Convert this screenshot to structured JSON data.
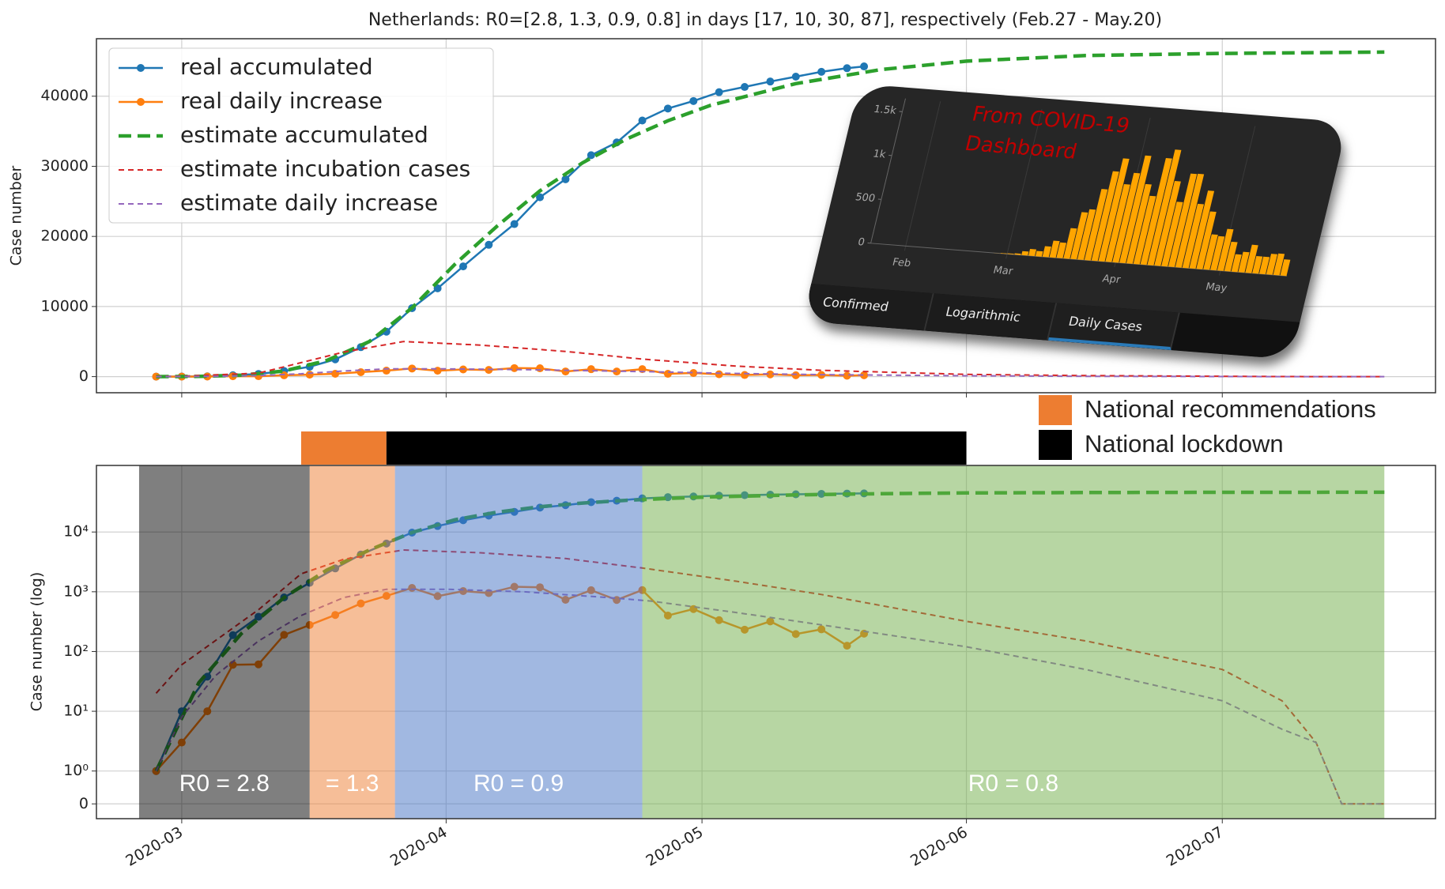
{
  "chart_data": [
    {
      "type": "line",
      "title": "Netherlands: R0=[2.8, 1.3, 0.9, 0.8] in days [17, 10, 30, 87], respectively (Feb.27 - May.20)",
      "ylabel": "Case number",
      "xlim": [
        "2020-02-20",
        "2020-07-26"
      ],
      "xticks": [
        "2020-03-01",
        "2020-04-01",
        "2020-05-01",
        "2020-06-01",
        "2020-07-01"
      ],
      "ylim": [
        -2300,
        48200
      ],
      "yticks": [
        0,
        10000,
        20000,
        30000,
        40000
      ],
      "grid": true,
      "legend": "upper left",
      "series": [
        {
          "name": "real accumulated",
          "color": "#1f77b4",
          "linestyle": "-",
          "marker": "o",
          "x": [
            "2020-02-27",
            "2020-03-01",
            "2020-03-04",
            "2020-03-07",
            "2020-03-10",
            "2020-03-13",
            "2020-03-16",
            "2020-03-19",
            "2020-03-22",
            "2020-03-25",
            "2020-03-28",
            "2020-03-31",
            "2020-04-03",
            "2020-04-06",
            "2020-04-09",
            "2020-04-12",
            "2020-04-15",
            "2020-04-18",
            "2020-04-21",
            "2020-04-24",
            "2020-04-27",
            "2020-04-30",
            "2020-05-03",
            "2020-05-06",
            "2020-05-09",
            "2020-05-12",
            "2020-05-15",
            "2020-05-18",
            "2020-05-20"
          ],
          "values": [
            1,
            10,
            38,
            188,
            382,
            804,
            1413,
            2460,
            4204,
            6412,
            9762,
            12595,
            15723,
            18803,
            21762,
            25587,
            28153,
            31589,
            33405,
            36535,
            38245,
            39316,
            40571,
            41319,
            42093,
            42788,
            43481,
            43995,
            44249
          ]
        },
        {
          "name": "real daily increase",
          "color": "#ff7f0e",
          "linestyle": "-",
          "marker": "o",
          "x": [
            "2020-02-27",
            "2020-03-01",
            "2020-03-04",
            "2020-03-07",
            "2020-03-10",
            "2020-03-13",
            "2020-03-16",
            "2020-03-19",
            "2020-03-22",
            "2020-03-25",
            "2020-03-28",
            "2020-03-31",
            "2020-04-03",
            "2020-04-06",
            "2020-04-09",
            "2020-04-12",
            "2020-04-15",
            "2020-04-18",
            "2020-04-21",
            "2020-04-24",
            "2020-04-27",
            "2020-04-30",
            "2020-05-03",
            "2020-05-06",
            "2020-05-09",
            "2020-05-12",
            "2020-05-15",
            "2020-05-18",
            "2020-05-20"
          ],
          "values": [
            1,
            3,
            10,
            60,
            61,
            190,
            278,
            409,
            637,
            852,
            1159,
            845,
            1026,
            952,
            1213,
            1188,
            734,
            1061,
            729,
            1066,
            400,
            514,
            335,
            232,
            319,
            196,
            235,
            125,
            199
          ]
        },
        {
          "name": "estimate accumulated",
          "color": "#2ca02c",
          "linestyle": "--",
          "x": [
            "2020-02-27",
            "2020-03-03",
            "2020-03-08",
            "2020-03-13",
            "2020-03-18",
            "2020-03-23",
            "2020-03-28",
            "2020-04-02",
            "2020-04-07",
            "2020-04-12",
            "2020-04-17",
            "2020-04-22",
            "2020-04-27",
            "2020-05-02",
            "2020-05-12",
            "2020-05-22",
            "2020-06-01",
            "2020-06-15",
            "2020-07-01",
            "2020-07-20"
          ],
          "values": [
            1,
            30,
            200,
            800,
            2300,
            5000,
            9800,
            16000,
            21500,
            26500,
            30500,
            33800,
            36500,
            38700,
            41800,
            43800,
            45000,
            45800,
            46100,
            46300
          ]
        },
        {
          "name": "estimate incubation cases",
          "color": "#d62728",
          "linestyle": "--",
          "x": [
            "2020-02-27",
            "2020-03-01",
            "2020-03-10",
            "2020-03-15",
            "2020-03-20",
            "2020-03-27",
            "2020-04-05",
            "2020-04-15",
            "2020-04-24",
            "2020-05-05",
            "2020-05-15",
            "2020-06-01",
            "2020-06-15",
            "2020-07-01",
            "2020-07-08",
            "2020-07-12",
            "2020-07-15",
            "2020-07-20"
          ],
          "values": [
            20,
            60,
            500,
            2000,
            3500,
            5000,
            4500,
            3600,
            2500,
            1500,
            900,
            320,
            150,
            50,
            15,
            3,
            0,
            0
          ]
        },
        {
          "name": "estimate daily increase",
          "color": "#9467bd",
          "linestyle": "--",
          "x": [
            "2020-02-27",
            "2020-03-01",
            "2020-03-05",
            "2020-03-10",
            "2020-03-15",
            "2020-03-20",
            "2020-03-25",
            "2020-04-01",
            "2020-04-10",
            "2020-04-20",
            "2020-04-25",
            "2020-05-05",
            "2020-05-15",
            "2020-06-01",
            "2020-06-15",
            "2020-07-01",
            "2020-07-08",
            "2020-07-12",
            "2020-07-15",
            "2020-07-20"
          ],
          "values": [
            1,
            8,
            40,
            150,
            400,
            800,
            1100,
            1100,
            1000,
            800,
            700,
            450,
            280,
            120,
            50,
            15,
            5,
            3,
            0,
            0
          ]
        }
      ]
    },
    {
      "type": "line",
      "ylabel": "Case number (log)",
      "xlim": [
        "2020-02-20",
        "2020-07-26"
      ],
      "xticks": [
        {
          "value": "2020-03-01",
          "label": "2020-03"
        },
        {
          "value": "2020-04-01",
          "label": "2020-04"
        },
        {
          "value": "2020-05-01",
          "label": "2020-05"
        },
        {
          "value": "2020-06-01",
          "label": "2020-06"
        },
        {
          "value": "2020-07-01",
          "label": "2020-07"
        }
      ],
      "yscale": "symlog",
      "linthresh": 1,
      "linscale": 0.55,
      "ylim": [
        -0.45,
        130000
      ],
      "yticks": [
        0,
        {
          "value": 1,
          "label": "10⁰"
        },
        {
          "value": 10,
          "label": "10¹"
        },
        {
          "value": 100,
          "label": "10²"
        },
        {
          "value": 1000,
          "label": "10³"
        },
        {
          "value": 10000,
          "label": "10⁴"
        }
      ],
      "grid": true,
      "phases": [
        {
          "start": "2020-02-25",
          "end": "2020-03-16",
          "color": "#000000",
          "label": "R0 = 2.8"
        },
        {
          "start": "2020-03-16",
          "end": "2020-03-26",
          "color": "#ed7d31",
          "label": "= 1.3"
        },
        {
          "start": "2020-03-26",
          "end": "2020-04-24",
          "color": "#4472c4",
          "label": "R0 = 0.9"
        },
        {
          "start": "2020-04-24",
          "end": "2020-07-20",
          "color": "#70ad47",
          "label": "R0 = 0.8"
        }
      ],
      "timeline": [
        {
          "start": "2020-03-15",
          "end": "2020-03-25",
          "color": "#ed7d31",
          "name": "National recommendations"
        },
        {
          "start": "2020-03-25",
          "end": "2020-06-01",
          "color": "#000000",
          "name": "National lockdown"
        }
      ],
      "series": [
        {
          "color": "#1f77b4",
          "linestyle": "-",
          "marker": "o",
          "x": [
            "2020-02-27",
            "2020-03-01",
            "2020-03-04",
            "2020-03-07",
            "2020-03-10",
            "2020-03-13",
            "2020-03-16",
            "2020-03-19",
            "2020-03-22",
            "2020-03-25",
            "2020-03-28",
            "2020-03-31",
            "2020-04-03",
            "2020-04-06",
            "2020-04-09",
            "2020-04-12",
            "2020-04-15",
            "2020-04-18",
            "2020-04-21",
            "2020-04-24",
            "2020-04-27",
            "2020-04-30",
            "2020-05-03",
            "2020-05-06",
            "2020-05-09",
            "2020-05-12",
            "2020-05-15",
            "2020-05-18",
            "2020-05-20"
          ],
          "values": [
            1,
            10,
            38,
            188,
            382,
            804,
            1413,
            2460,
            4204,
            6412,
            9762,
            12595,
            15723,
            18803,
            21762,
            25587,
            28153,
            31589,
            33405,
            36535,
            38245,
            39316,
            40571,
            41319,
            42093,
            42788,
            43481,
            43995,
            44249
          ]
        },
        {
          "color": "#ff7f0e",
          "linestyle": "-",
          "marker": "o",
          "x": [
            "2020-02-27",
            "2020-03-01",
            "2020-03-04",
            "2020-03-07",
            "2020-03-10",
            "2020-03-13",
            "2020-03-16",
            "2020-03-19",
            "2020-03-22",
            "2020-03-25",
            "2020-03-28",
            "2020-03-31",
            "2020-04-03",
            "2020-04-06",
            "2020-04-09",
            "2020-04-12",
            "2020-04-15",
            "2020-04-18",
            "2020-04-21",
            "2020-04-24",
            "2020-04-27",
            "2020-04-30",
            "2020-05-03",
            "2020-05-06",
            "2020-05-09",
            "2020-05-12",
            "2020-05-15",
            "2020-05-18",
            "2020-05-20"
          ],
          "values": [
            1,
            3,
            10,
            60,
            61,
            190,
            278,
            409,
            637,
            852,
            1159,
            845,
            1026,
            952,
            1213,
            1188,
            734,
            1061,
            729,
            1066,
            400,
            514,
            335,
            232,
            319,
            196,
            235,
            125,
            199
          ]
        },
        {
          "color": "#2ca02c",
          "linestyle": "--",
          "x": [
            "2020-02-27",
            "2020-03-03",
            "2020-03-08",
            "2020-03-13",
            "2020-03-18",
            "2020-03-23",
            "2020-03-28",
            "2020-04-02",
            "2020-04-07",
            "2020-04-12",
            "2020-04-17",
            "2020-04-22",
            "2020-04-27",
            "2020-05-02",
            "2020-05-12",
            "2020-05-22",
            "2020-06-01",
            "2020-06-15",
            "2020-07-01",
            "2020-07-20"
          ],
          "values": [
            1,
            30,
            200,
            800,
            2300,
            5000,
            9800,
            16000,
            21500,
            26500,
            30500,
            33800,
            36500,
            38700,
            41800,
            43800,
            45000,
            45800,
            46100,
            46300
          ]
        },
        {
          "color": "#d62728",
          "linestyle": "--",
          "x": [
            "2020-02-27",
            "2020-03-01",
            "2020-03-10",
            "2020-03-15",
            "2020-03-20",
            "2020-03-27",
            "2020-04-05",
            "2020-04-15",
            "2020-04-24",
            "2020-05-05",
            "2020-05-15",
            "2020-06-01",
            "2020-06-15",
            "2020-07-01",
            "2020-07-08",
            "2020-07-12",
            "2020-07-15",
            "2020-07-20"
          ],
          "values": [
            20,
            60,
            500,
            2000,
            3500,
            5000,
            4500,
            3600,
            2500,
            1500,
            900,
            320,
            150,
            50,
            15,
            3,
            0,
            0
          ]
        },
        {
          "color": "#9467bd",
          "linestyle": "--",
          "x": [
            "2020-02-27",
            "2020-03-01",
            "2020-03-05",
            "2020-03-10",
            "2020-03-15",
            "2020-03-20",
            "2020-03-25",
            "2020-04-01",
            "2020-04-10",
            "2020-04-20",
            "2020-04-25",
            "2020-05-05",
            "2020-05-15",
            "2020-06-01",
            "2020-06-15",
            "2020-07-01",
            "2020-07-08",
            "2020-07-12",
            "2020-07-15",
            "2020-07-20"
          ],
          "values": [
            1,
            8,
            40,
            150,
            400,
            800,
            1100,
            1100,
            1000,
            800,
            700,
            450,
            280,
            120,
            50,
            15,
            5,
            3,
            0,
            0
          ]
        }
      ]
    },
    {
      "type": "bar",
      "annotation": "From COVID-19 Dashboard",
      "tabs": [
        "Confirmed",
        "Logarithmic",
        "Daily Cases"
      ],
      "color": "#ffa500",
      "xlim": [
        "2020-01-22",
        "2020-05-20"
      ],
      "xticks": [
        {
          "value": "2020-02-01",
          "label": "Feb"
        },
        {
          "value": "2020-03-01",
          "label": "Mar"
        },
        {
          "value": "2020-04-01",
          "label": "Apr"
        },
        {
          "value": "2020-05-01",
          "label": "May"
        }
      ],
      "ylim": [
        0,
        1650
      ],
      "yticks": [
        0,
        500,
        {
          "value": 1000,
          "label": "1k"
        },
        {
          "value": 1500,
          "label": "1.5k"
        }
      ],
      "x": [
        "2020-02-27",
        "2020-02-29",
        "2020-03-02",
        "2020-03-04",
        "2020-03-06",
        "2020-03-08",
        "2020-03-10",
        "2020-03-12",
        "2020-03-14",
        "2020-03-16",
        "2020-03-18",
        "2020-03-20",
        "2020-03-22",
        "2020-03-24",
        "2020-03-26",
        "2020-03-28",
        "2020-03-30",
        "2020-04-01",
        "2020-04-03",
        "2020-04-05",
        "2020-04-07",
        "2020-04-09",
        "2020-04-11",
        "2020-04-13",
        "2020-04-15",
        "2020-04-17",
        "2020-04-19",
        "2020-04-21",
        "2020-04-23",
        "2020-04-25",
        "2020-04-27",
        "2020-04-29",
        "2020-05-01",
        "2020-05-03",
        "2020-05-05",
        "2020-05-07",
        "2020-05-09",
        "2020-05-11",
        "2020-05-13",
        "2020-05-15",
        "2020-05-17",
        "2020-05-19"
      ],
      "values": [
        1,
        5,
        8,
        14,
        46,
        77,
        60,
        121,
        190,
        176,
        346,
        534,
        573,
        811,
        1019,
        1172,
        884,
        1019,
        1224,
        904,
        777,
        1213,
        1316,
        964,
        734,
        1061,
        1066,
        729,
        887,
        655,
        400,
        386,
        475,
        335,
        199,
        232,
        319,
        196,
        196,
        235,
        244,
        184
      ]
    }
  ]
}
